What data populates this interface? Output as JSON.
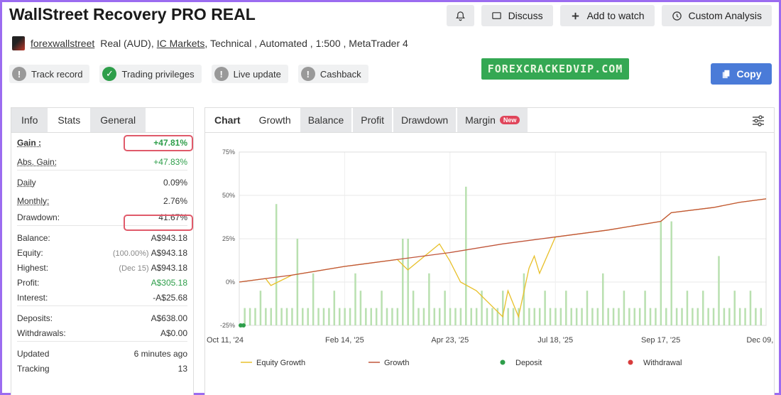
{
  "header": {
    "title": "WallStreet Recovery PRO REAL",
    "buttons": {
      "discuss": "Discuss",
      "watch": "Add to watch",
      "analysis": "Custom Analysis"
    }
  },
  "subline": {
    "user": "forexwallstreet",
    "account": "Real (AUD),",
    "broker": "IC Markets",
    "rest": ", Technical , Automated , 1:500 , MetaTrader 4"
  },
  "badges": [
    {
      "label": "Track record",
      "status": "inactive",
      "icon": "!"
    },
    {
      "label": "Trading privileges",
      "status": "ok",
      "icon": "✓"
    },
    {
      "label": "Live update",
      "status": "inactive",
      "icon": "!"
    },
    {
      "label": "Cashback",
      "status": "inactive",
      "icon": "!"
    }
  ],
  "watermark": "FOREXCRACKEDVIP.COM",
  "copy_label": "Copy",
  "stats_tabs": [
    "Info",
    "Stats",
    "General"
  ],
  "stats": {
    "gain_label": "Gain :",
    "gain": "+47.81%",
    "abs_gain_label": "Abs. Gain:",
    "abs_gain": "+47.83%",
    "daily_label": "Daily",
    "daily": "0.09%",
    "monthly_label": "Monthly:",
    "monthly": "2.76%",
    "drawdown_label": "Drawdown:",
    "drawdown": "41.67%",
    "balance_label": "Balance:",
    "balance": "A$943.18",
    "equity_label": "Equity:",
    "equity_pct": "(100.00%)",
    "equity": "A$943.18",
    "highest_label": "Highest:",
    "highest_date": "(Dec 15)",
    "highest": "A$943.18",
    "profit_label": "Profit:",
    "profit": "A$305.18",
    "interest_label": "Interest:",
    "interest": "-A$25.68",
    "deposits_label": "Deposits:",
    "deposits": "A$638.00",
    "withdrawals_label": "Withdrawals:",
    "withdrawals": "A$0.00",
    "updated_label": "Updated",
    "updated": "6 minutes ago",
    "tracking_label": "Tracking",
    "tracking": "13"
  },
  "chart_tabs": [
    "Chart",
    "Growth",
    "Balance",
    "Profit",
    "Drawdown",
    "Margin"
  ],
  "new_badge": "New",
  "colors": {
    "equity": "#e8c02a",
    "growth": "#c0553a",
    "deposit": "#2e9e4a",
    "withdrawal": "#d83c3c",
    "bars": "#b9e0b0"
  },
  "chart_data": {
    "type": "line",
    "ylim": [
      -25,
      75
    ],
    "y_ticks": [
      "75%",
      "50%",
      "25%",
      "0%",
      "-25%"
    ],
    "y_tick_values": [
      75,
      50,
      25,
      0,
      -25
    ],
    "x_ticks": [
      "Oct 11, '24",
      "Feb 14, '25",
      "Apr 23, '25",
      "Jul 18, '25",
      "Sep 17, '25",
      "Dec 09, '25"
    ],
    "legend": [
      "Equity Growth",
      "Growth",
      "Deposit",
      "Withdrawal"
    ],
    "series": [
      {
        "name": "Growth",
        "x": [
          0,
          0.05,
          0.1,
          0.2,
          0.3,
          0.4,
          0.5,
          0.6,
          0.7,
          0.8,
          0.82,
          0.9,
          0.95,
          1.0
        ],
        "values": [
          0,
          2,
          4,
          9,
          13,
          17,
          22,
          26,
          30,
          35,
          40,
          43,
          46,
          48
        ]
      },
      {
        "name": "Equity Growth",
        "x": [
          0,
          0.05,
          0.06,
          0.1,
          0.2,
          0.3,
          0.31,
          0.32,
          0.38,
          0.4,
          0.42,
          0.45,
          0.5,
          0.51,
          0.53,
          0.55,
          0.56,
          0.57,
          0.6,
          0.7,
          0.8,
          0.82,
          0.9,
          0.95,
          1.0
        ],
        "values": [
          0,
          2,
          -2,
          4,
          9,
          13,
          10,
          7,
          22,
          12,
          0,
          -5,
          -20,
          -5,
          -20,
          8,
          15,
          5,
          26,
          30,
          35,
          40,
          43,
          46,
          48
        ]
      }
    ],
    "bars_x": [
      0.01,
      0.02,
      0.03,
      0.04,
      0.05,
      0.06,
      0.07,
      0.08,
      0.09,
      0.1,
      0.11,
      0.12,
      0.13,
      0.14,
      0.15,
      0.16,
      0.17,
      0.18,
      0.19,
      0.2,
      0.21,
      0.22,
      0.23,
      0.24,
      0.25,
      0.26,
      0.27,
      0.28,
      0.29,
      0.3,
      0.31,
      0.32,
      0.33,
      0.34,
      0.35,
      0.36,
      0.37,
      0.38,
      0.39,
      0.4,
      0.41,
      0.42,
      0.43,
      0.44,
      0.45,
      0.46,
      0.47,
      0.48,
      0.49,
      0.5,
      0.51,
      0.52,
      0.53,
      0.54,
      0.55,
      0.56,
      0.57,
      0.58,
      0.59,
      0.6,
      0.61,
      0.62,
      0.63,
      0.64,
      0.65,
      0.66,
      0.67,
      0.68,
      0.69,
      0.7,
      0.71,
      0.72,
      0.73,
      0.74,
      0.75,
      0.76,
      0.77,
      0.78,
      0.79,
      0.8,
      0.81,
      0.82,
      0.83,
      0.84,
      0.85,
      0.86,
      0.87,
      0.88,
      0.89,
      0.9,
      0.91,
      0.92,
      0.93,
      0.94,
      0.95,
      0.96,
      0.97,
      0.98,
      0.99
    ],
    "bars_h": [
      -15,
      -15,
      -15,
      -5,
      -15,
      -15,
      45,
      -15,
      -15,
      -15,
      25,
      -15,
      -15,
      5,
      -15,
      -15,
      -15,
      -5,
      -15,
      -15,
      -15,
      5,
      -5,
      -15,
      -15,
      -15,
      -5,
      -15,
      -15,
      -15,
      25,
      25,
      -5,
      -15,
      -15,
      5,
      -15,
      -15,
      -5,
      -15,
      -15,
      -15,
      55,
      -15,
      -15,
      -5,
      -15,
      -15,
      -15,
      -5,
      -15,
      -15,
      -15,
      5,
      -15,
      -15,
      -15,
      -5,
      -15,
      -15,
      -15,
      -5,
      -15,
      -15,
      -15,
      -5,
      -15,
      -15,
      5,
      -15,
      -15,
      -15,
      -5,
      -15,
      -15,
      -15,
      -5,
      -15,
      -15,
      35,
      -15,
      35,
      -15,
      -15,
      -5,
      -15,
      -15,
      -5,
      -15,
      -15,
      15,
      -15,
      -15,
      -5,
      -15,
      -15,
      -5,
      -15,
      -15
    ]
  }
}
